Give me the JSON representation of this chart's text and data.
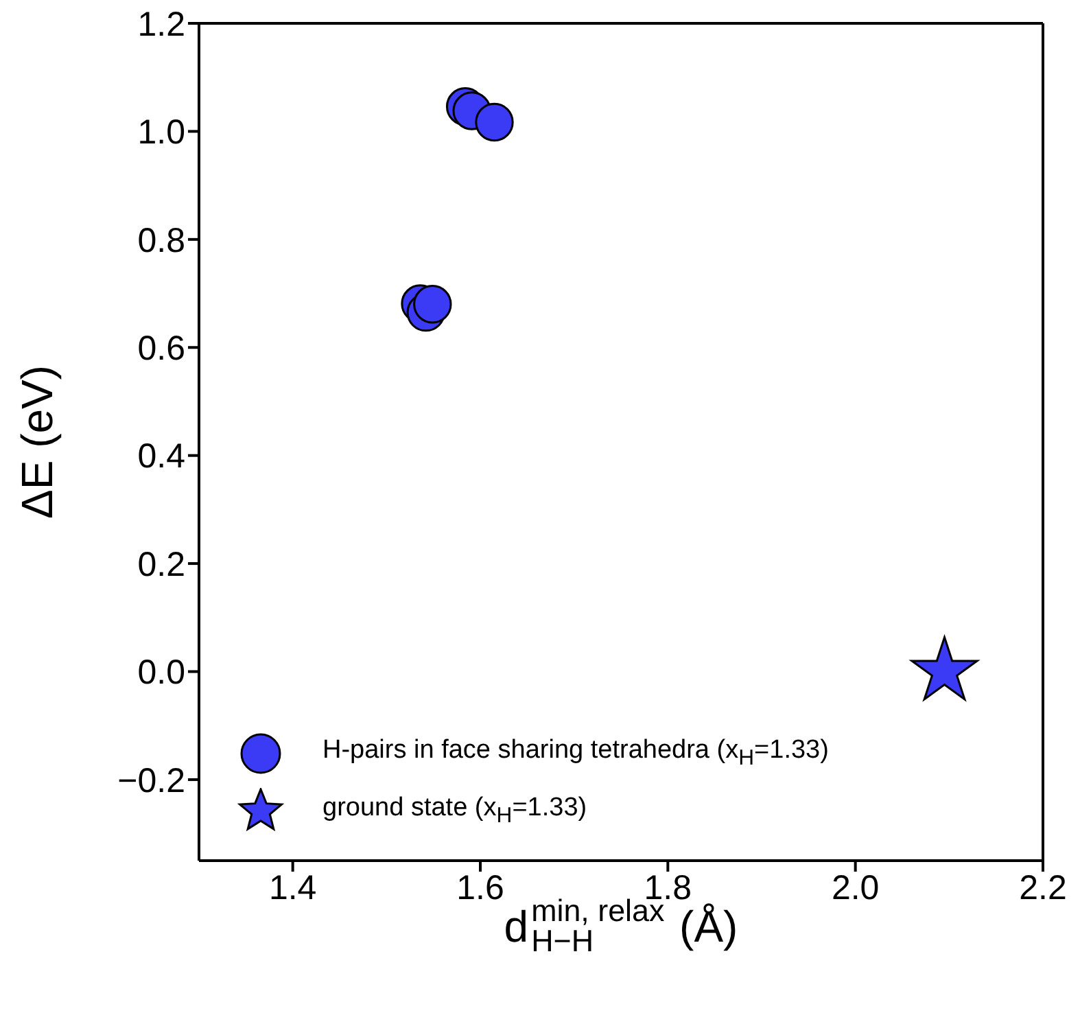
{
  "chart_data": {
    "type": "scatter",
    "xlabel": "d$^{min, relax}$$_{H−H}$ (Å)",
    "ylabel": "ΔE (eV)",
    "xlim": [
      1.3,
      2.2
    ],
    "xticks": [
      1.4,
      1.6,
      1.8,
      {
        "value": 2.0,
        "label": "2.0"
      },
      2.2
    ],
    "ylim": [
      -0.35,
      1.2
    ],
    "yticks": [
      {
        "value": -0.2,
        "label": "−0.2"
      },
      {
        "value": 0,
        "label": "0.0"
      },
      0.2,
      0.4,
      0.6,
      0.8,
      {
        "value": 1.0,
        "label": "1.0"
      },
      1.2
    ],
    "legend": "bottom left",
    "series": [
      {
        "name": "H-pairs in face sharing tetrahedra (x$_{H}$=1.33)",
        "color": "#3b3bf5",
        "marker": "circle",
        "x": [
          1.584,
          1.591,
          1.615,
          1.536,
          1.542,
          1.549
        ],
        "values": [
          1.046,
          1.038,
          1.017,
          0.681,
          0.665,
          0.68
        ]
      },
      {
        "name": "ground state (x$_{H}$=1.33)",
        "color": "#3b3bf5",
        "marker": "star",
        "x": [
          2.095
        ],
        "values": [
          0.0
        ]
      }
    ]
  }
}
